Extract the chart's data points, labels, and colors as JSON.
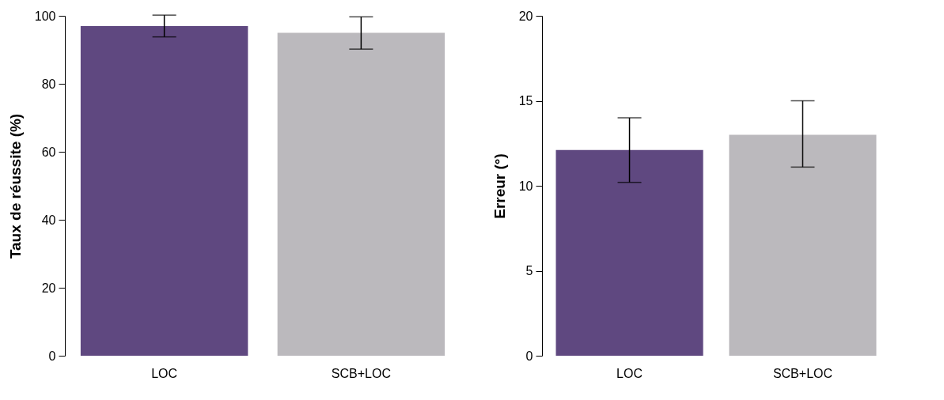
{
  "chart_data": [
    {
      "type": "bar",
      "ylabel": "Taux de réussite (%)",
      "categories": [
        "LOC",
        "SCB+LOC"
      ],
      "values": [
        97,
        95
      ],
      "colors": [
        "#5f4880",
        "#bbb9bd"
      ],
      "errors": [
        [
          93.8,
          100.2
        ],
        [
          90.2,
          99.7
        ]
      ],
      "ylim": [
        0,
        100
      ],
      "yticks": [
        0,
        20,
        40,
        60,
        80,
        100
      ],
      "grid": false
    },
    {
      "type": "bar",
      "ylabel": "Erreur (°)",
      "categories": [
        "LOC",
        "SCB+LOC"
      ],
      "values": [
        12.1,
        13
      ],
      "colors": [
        "#5f4880",
        "#bbb9bd"
      ],
      "errors": [
        [
          10.2,
          14
        ],
        [
          11.1,
          15
        ]
      ],
      "ylim": [
        0,
        20
      ],
      "yticks": [
        0,
        5,
        10,
        15,
        20
      ],
      "grid": false
    }
  ]
}
